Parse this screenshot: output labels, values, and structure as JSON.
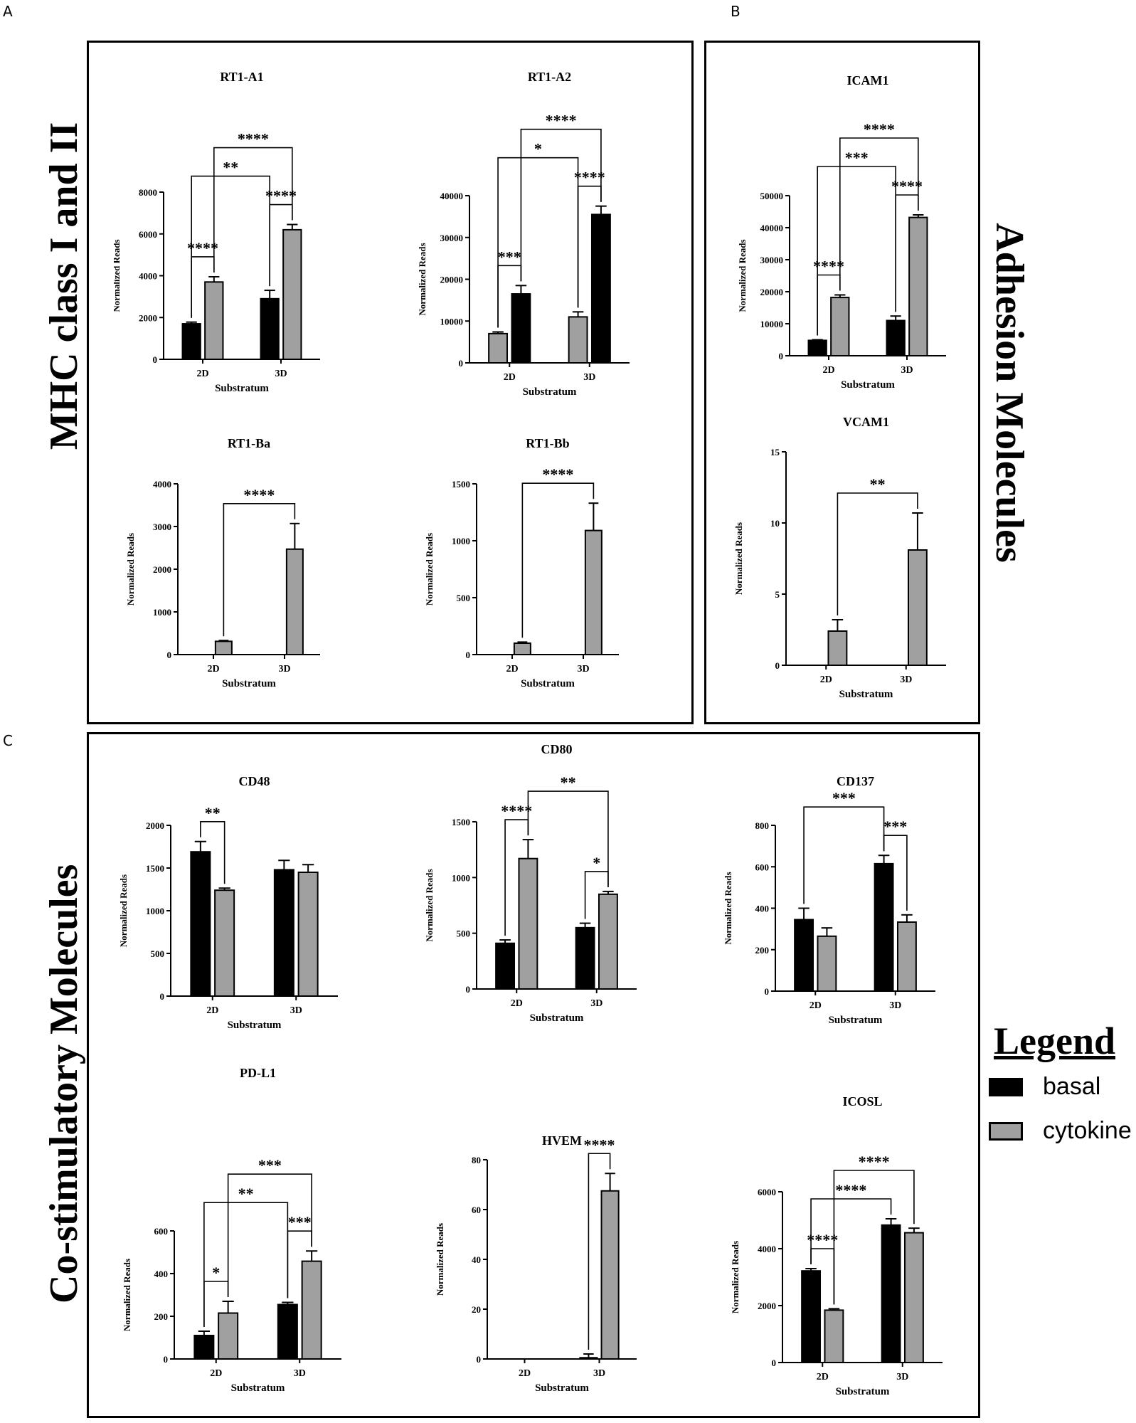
{
  "figure": {
    "panel_labels": {
      "A": "A",
      "B": "B",
      "C": "C"
    },
    "section_titles": {
      "mhc": "MHC class I and II",
      "adhesion": "Adhesion Molecules",
      "costim": "Co-stimulatory Molecules"
    },
    "legend": {
      "title": "Legend",
      "items": [
        {
          "label": "basal",
          "color": "#000000"
        },
        {
          "label": "cytokine",
          "color": "#a0a0a0"
        }
      ]
    }
  },
  "chart_data": [
    {
      "id": "rt1a1",
      "type": "bar",
      "title": "RT1-A1",
      "xlabel": "Substratum",
      "ylabel": "Normalized Reads",
      "categories": [
        "2D",
        "3D"
      ],
      "ylim": [
        0,
        8000
      ],
      "yticks": [
        0,
        2000,
        4000,
        6000,
        8000
      ],
      "series": [
        {
          "name": "basal",
          "values": [
            1700,
            2900
          ],
          "errors": [
            80,
            400
          ]
        },
        {
          "name": "cytokine",
          "values": [
            3700,
            6200
          ],
          "errors": [
            250,
            250
          ]
        }
      ],
      "annotations": [
        {
          "from": "2D-basal",
          "to": "3D-basal",
          "label": "**"
        },
        {
          "from": "2D-cytokine",
          "to": "3D-cytokine",
          "label": "****"
        },
        {
          "from": "2D-basal",
          "to": "2D-cytokine",
          "label": "****"
        },
        {
          "from": "3D-basal",
          "to": "3D-cytokine",
          "label": "****"
        }
      ]
    },
    {
      "id": "rt1a2",
      "type": "bar",
      "title": "RT1-A2",
      "xlabel": "Substratum",
      "ylabel": "Normalized Reads",
      "categories": [
        "2D",
        "3D"
      ],
      "ylim": [
        0,
        40000
      ],
      "yticks": [
        0,
        10000,
        20000,
        30000,
        40000
      ],
      "series": [
        {
          "name": "cytokine",
          "values": [
            7000,
            11000
          ],
          "errors": [
            400,
            1200
          ]
        },
        {
          "name": "basal",
          "values": [
            16500,
            35500
          ],
          "errors": [
            2000,
            2000
          ]
        }
      ],
      "annotations": [
        {
          "from": "2D-cytokine",
          "to": "3D-cytokine",
          "label": "*"
        },
        {
          "from": "2D-basal",
          "to": "3D-basal",
          "label": "****"
        },
        {
          "from": "2D-cytokine",
          "to": "2D-basal",
          "label": "***"
        },
        {
          "from": "3D-cytokine",
          "to": "3D-basal",
          "label": "****"
        }
      ]
    },
    {
      "id": "rt1ba",
      "type": "bar",
      "title": "RT1-Ba",
      "xlabel": "Substratum",
      "ylabel": "Normalized Reads",
      "categories": [
        "2D",
        "3D"
      ],
      "ylim": [
        0,
        4000
      ],
      "yticks": [
        0,
        1000,
        2000,
        3000,
        4000
      ],
      "series": [
        {
          "name": "basal",
          "values": [
            0,
            0
          ],
          "errors": [
            0,
            0
          ]
        },
        {
          "name": "cytokine",
          "values": [
            310,
            2470
          ],
          "errors": [
            20,
            600
          ]
        }
      ],
      "annotations": [
        {
          "from": "2D-cytokine",
          "to": "3D-cytokine",
          "label": "****"
        }
      ]
    },
    {
      "id": "rt1bb",
      "type": "bar",
      "title": "RT1-Bb",
      "xlabel": "Substratum",
      "ylabel": "Normalized Reads",
      "categories": [
        "2D",
        "3D"
      ],
      "ylim": [
        0,
        1500
      ],
      "yticks": [
        0,
        500,
        1000,
        1500
      ],
      "series": [
        {
          "name": "basal",
          "values": [
            0,
            0
          ],
          "errors": [
            0,
            0
          ]
        },
        {
          "name": "cytokine",
          "values": [
            100,
            1090
          ],
          "errors": [
            10,
            240
          ]
        }
      ],
      "annotations": [
        {
          "from": "2D-cytokine",
          "to": "3D-cytokine",
          "label": "****"
        }
      ]
    },
    {
      "id": "icam1",
      "type": "bar",
      "title": "ICAM1",
      "xlabel": "Substratum",
      "ylabel": "Normalized Reads",
      "categories": [
        "2D",
        "3D"
      ],
      "ylim": [
        0,
        50000
      ],
      "yticks": [
        0,
        10000,
        20000,
        30000,
        40000,
        50000
      ],
      "series": [
        {
          "name": "basal",
          "values": [
            4800,
            11000
          ],
          "errors": [
            200,
            1400
          ]
        },
        {
          "name": "cytokine",
          "values": [
            18200,
            43200
          ],
          "errors": [
            800,
            800
          ]
        }
      ],
      "annotations": [
        {
          "from": "2D-basal",
          "to": "3D-basal",
          "label": "***"
        },
        {
          "from": "2D-cytokine",
          "to": "3D-cytokine",
          "label": "****"
        },
        {
          "from": "2D-basal",
          "to": "2D-cytokine",
          "label": "****"
        },
        {
          "from": "3D-basal",
          "to": "3D-cytokine",
          "label": "****"
        }
      ]
    },
    {
      "id": "vcam1",
      "type": "bar",
      "title": "VCAM1",
      "xlabel": "Substratum",
      "ylabel": "Normalized Reads",
      "categories": [
        "2D",
        "3D"
      ],
      "ylim": [
        0,
        15
      ],
      "yticks": [
        0,
        5,
        10,
        15
      ],
      "series": [
        {
          "name": "basal",
          "values": [
            0,
            0
          ],
          "errors": [
            0,
            0
          ]
        },
        {
          "name": "cytokine",
          "values": [
            2.4,
            8.1
          ],
          "errors": [
            0.8,
            2.6
          ]
        }
      ],
      "annotations": [
        {
          "from": "2D-cytokine",
          "to": "3D-cytokine",
          "label": "**"
        }
      ]
    },
    {
      "id": "cd48",
      "type": "bar",
      "title": "CD48",
      "xlabel": "Substratum",
      "ylabel": "Normalized Reads",
      "categories": [
        "2D",
        "3D"
      ],
      "ylim": [
        0,
        2000
      ],
      "yticks": [
        0,
        500,
        1000,
        1500,
        2000
      ],
      "series": [
        {
          "name": "basal",
          "values": [
            1690,
            1480
          ],
          "errors": [
            120,
            110
          ]
        },
        {
          "name": "cytokine",
          "values": [
            1240,
            1450
          ],
          "errors": [
            25,
            90
          ]
        }
      ],
      "annotations": [
        {
          "from": "2D-basal",
          "to": "2D-cytokine",
          "label": "**"
        }
      ]
    },
    {
      "id": "cd80",
      "type": "bar",
      "title": "CD80",
      "xlabel": "Substratum",
      "ylabel": "Normalized Reads",
      "categories": [
        "2D",
        "3D"
      ],
      "ylim": [
        0,
        1500
      ],
      "yticks": [
        0,
        500,
        1000,
        1500
      ],
      "series": [
        {
          "name": "basal",
          "values": [
            410,
            550
          ],
          "errors": [
            30,
            40
          ]
        },
        {
          "name": "cytokine",
          "values": [
            1170,
            850
          ],
          "errors": [
            170,
            25
          ]
        }
      ],
      "annotations": [
        {
          "from": "2D-cytokine",
          "to": "3D-cytokine",
          "label": "**"
        },
        {
          "from": "2D-basal",
          "to": "2D-cytokine",
          "label": "****"
        },
        {
          "from": "3D-basal",
          "to": "3D-cytokine",
          "label": "*"
        }
      ]
    },
    {
      "id": "cd137",
      "type": "bar",
      "title": "CD137",
      "xlabel": "Substratum",
      "ylabel": "Normalized Reads",
      "categories": [
        "2D",
        "3D"
      ],
      "ylim": [
        0,
        800
      ],
      "yticks": [
        0,
        200,
        400,
        600,
        800
      ],
      "series": [
        {
          "name": "basal",
          "values": [
            345,
            615
          ],
          "errors": [
            55,
            40
          ]
        },
        {
          "name": "cytokine",
          "values": [
            265,
            333
          ],
          "errors": [
            40,
            35
          ]
        }
      ],
      "annotations": [
        {
          "from": "2D-basal",
          "to": "3D-basal",
          "label": "***"
        },
        {
          "from": "3D-basal",
          "to": "3D-cytokine",
          "label": "***"
        }
      ]
    },
    {
      "id": "pdl1",
      "type": "bar",
      "title": "PD-L1",
      "xlabel": "Substratum",
      "ylabel": "Normalized Reads",
      "categories": [
        "2D",
        "3D"
      ],
      "ylim": [
        0,
        600
      ],
      "yticks": [
        0,
        200,
        400,
        600
      ],
      "series": [
        {
          "name": "basal",
          "values": [
            110,
            255
          ],
          "errors": [
            20,
            10
          ]
        },
        {
          "name": "cytokine",
          "values": [
            215,
            458
          ],
          "errors": [
            55,
            48
          ]
        }
      ],
      "annotations": [
        {
          "from": "2D-basal",
          "to": "3D-basal",
          "label": "**"
        },
        {
          "from": "2D-cytokine",
          "to": "3D-cytokine",
          "label": "***"
        },
        {
          "from": "2D-basal",
          "to": "2D-cytokine",
          "label": "*"
        },
        {
          "from": "3D-basal",
          "to": "3D-cytokine",
          "label": "***"
        }
      ]
    },
    {
      "id": "hvem",
      "type": "bar",
      "title": "HVEM",
      "xlabel": "Substratum",
      "ylabel": "Normalized Reads",
      "categories": [
        "2D",
        "3D"
      ],
      "ylim": [
        0,
        80
      ],
      "yticks": [
        0,
        20,
        40,
        60,
        80
      ],
      "series": [
        {
          "name": "basal",
          "values": [
            0,
            0.5
          ],
          "errors": [
            0,
            1.5
          ]
        },
        {
          "name": "cytokine",
          "values": [
            0,
            67.5
          ],
          "errors": [
            0,
            7
          ]
        }
      ],
      "annotations": [
        {
          "from": "3D-basal",
          "to": "3D-cytokine",
          "label": "****"
        }
      ]
    },
    {
      "id": "icosl",
      "type": "bar",
      "title": "ICOSL",
      "xlabel": "Substratum",
      "ylabel": "Normalized Reads",
      "categories": [
        "2D",
        "3D"
      ],
      "ylim": [
        0,
        6000
      ],
      "yticks": [
        0,
        2000,
        4000,
        6000
      ],
      "series": [
        {
          "name": "basal",
          "values": [
            3220,
            4830
          ],
          "errors": [
            80,
            220
          ]
        },
        {
          "name": "cytokine",
          "values": [
            1840,
            4560
          ],
          "errors": [
            50,
            160
          ]
        }
      ],
      "annotations": [
        {
          "from": "2D-basal",
          "to": "3D-basal",
          "label": "****"
        },
        {
          "from": "2D-cytokine",
          "to": "3D-cytokine",
          "label": "****"
        },
        {
          "from": "2D-basal",
          "to": "2D-cytokine",
          "label": "****"
        }
      ]
    }
  ]
}
